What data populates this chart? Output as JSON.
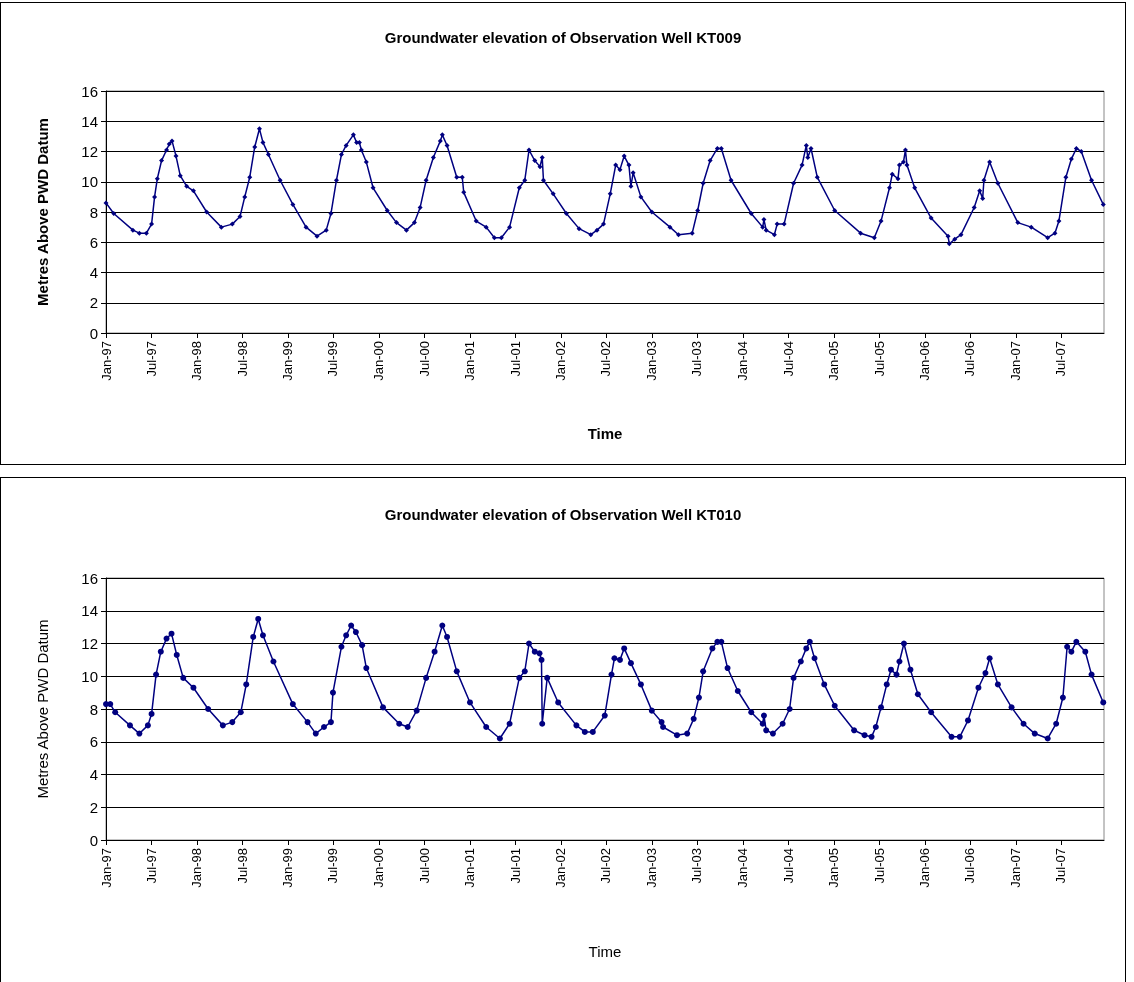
{
  "chart_data": [
    {
      "type": "line",
      "title": "Groundwater elevation of Observation Well KT009",
      "xlabel": "Time",
      "ylabel": "Metres Above PWD Datum",
      "xlim": [
        "1997-01",
        "2007-12-21"
      ],
      "ylim": [
        0,
        16
      ],
      "yticks": [
        0,
        2,
        4,
        6,
        8,
        10,
        12,
        14,
        16
      ],
      "xticks": [
        {
          "value": "1997-01",
          "label": "Jan-97"
        },
        {
          "value": "1997-07",
          "label": "Jul-97"
        },
        {
          "value": "1998-01",
          "label": "Jan-98"
        },
        {
          "value": "1998-07",
          "label": "Jul-98"
        },
        {
          "value": "1999-01",
          "label": "Jan-99"
        },
        {
          "value": "1999-07",
          "label": "Jul-99"
        },
        {
          "value": "2000-01",
          "label": "Jan-00"
        },
        {
          "value": "2000-07",
          "label": "Jul-00"
        },
        {
          "value": "2001-01",
          "label": "Jan-01"
        },
        {
          "value": "2001-07",
          "label": "Jul-01"
        },
        {
          "value": "2002-01",
          "label": "Jan-02"
        },
        {
          "value": "2002-07",
          "label": "Jul-02"
        },
        {
          "value": "2003-01",
          "label": "Jan-03"
        },
        {
          "value": "2003-07",
          "label": "Jul-03"
        },
        {
          "value": "2004-01",
          "label": "Jan-04"
        },
        {
          "value": "2004-07",
          "label": "Jul-04"
        },
        {
          "value": "2005-01",
          "label": "Jan-05"
        },
        {
          "value": "2005-07",
          "label": "Jul-05"
        },
        {
          "value": "2006-01",
          "label": "Jan-06"
        },
        {
          "value": "2006-07",
          "label": "Jul-06"
        },
        {
          "value": "2007-01",
          "label": "Jan-07"
        },
        {
          "value": "2007-07",
          "label": "Jul-07"
        }
      ],
      "grid": "y",
      "marker": "diamond",
      "line_style": "solid",
      "series": [
        {
          "color": "#000080",
          "x": [
            "1997-01-01",
            "1997-02-01",
            "1997-04-19",
            "1997-05-15",
            "1997-06-12",
            "1997-07-03",
            "1997-07-15",
            "1997-07-26",
            "1997-08-12",
            "1997-09-01",
            "1997-09-12",
            "1997-09-23",
            "1997-10-09",
            "1997-10-26",
            "1997-11-21",
            "1997-12-18",
            "1998-02-09",
            "1998-04-09",
            "1998-05-23",
            "1998-06-23",
            "1998-07-12",
            "1998-08-01",
            "1998-08-21",
            "1998-09-09",
            "1998-09-23",
            "1998-10-15",
            "1998-12-01",
            "1999-01-21",
            "1999-03-15",
            "1999-04-28",
            "1999-06-04",
            "1999-06-23",
            "1999-07-15",
            "1999-08-04",
            "1999-08-23",
            "1999-09-21",
            "1999-10-04",
            "1999-10-15",
            "1999-10-23",
            "1999-11-12",
            "1999-12-09",
            "2000-02-04",
            "2000-03-12",
            "2000-04-21",
            "2000-05-23",
            "2000-06-15",
            "2000-07-09",
            "2000-08-07",
            "2000-09-04",
            "2000-09-12",
            "2000-10-01",
            "2000-11-09",
            "2000-12-01",
            "2000-12-07",
            "2001-01-26",
            "2001-03-07",
            "2001-04-09",
            "2001-05-07",
            "2001-06-09",
            "2001-07-18",
            "2001-08-09",
            "2001-08-26",
            "2001-09-18",
            "2001-10-09",
            "2001-10-18",
            "2001-10-23",
            "2001-12-01",
            "2002-01-23",
            "2002-03-15",
            "2002-05-01",
            "2002-05-26",
            "2002-06-21",
            "2002-07-18",
            "2002-08-09",
            "2002-08-26",
            "2002-09-12",
            "2002-10-01",
            "2002-10-09",
            "2002-10-18",
            "2002-11-18",
            "2003-01-01",
            "2003-03-15",
            "2003-04-18",
            "2003-06-12",
            "2003-07-04",
            "2003-07-26",
            "2003-08-23",
            "2003-09-21",
            "2003-10-07",
            "2003-11-15",
            "2004-02-04",
            "2004-03-21",
            "2004-03-26",
            "2004-04-04",
            "2004-05-07",
            "2004-05-18",
            "2004-06-15",
            "2004-07-23",
            "2004-08-26",
            "2004-09-12",
            "2004-09-18",
            "2004-10-01",
            "2004-10-26",
            "2005-01-04",
            "2005-04-18",
            "2005-06-12",
            "2005-07-09",
            "2005-08-12",
            "2005-08-23",
            "2005-09-15",
            "2005-09-21",
            "2005-10-07",
            "2005-10-15",
            "2005-10-21",
            "2005-11-21",
            "2006-01-26",
            "2006-04-04",
            "2006-04-09",
            "2006-05-01",
            "2006-05-26",
            "2006-07-18",
            "2006-08-09",
            "2006-08-21",
            "2006-08-26",
            "2006-09-18",
            "2006-10-21",
            "2007-01-09",
            "2007-03-04",
            "2007-05-09",
            "2007-06-07",
            "2007-06-23",
            "2007-07-21",
            "2007-08-12",
            "2007-09-01",
            "2007-09-21",
            "2007-11-01",
            "2007-12-18"
          ],
          "values": [
            8.6,
            7.9,
            6.8,
            6.6,
            6.6,
            7.2,
            9.0,
            10.2,
            11.4,
            12.1,
            12.5,
            12.7,
            11.7,
            10.4,
            9.7,
            9.4,
            8.0,
            7.0,
            7.2,
            7.7,
            9.0,
            10.3,
            12.3,
            13.5,
            12.6,
            11.8,
            10.1,
            8.5,
            7.0,
            6.4,
            6.8,
            7.9,
            10.1,
            11.8,
            12.4,
            13.1,
            12.6,
            12.6,
            12.1,
            11.3,
            9.6,
            8.1,
            7.3,
            6.8,
            7.3,
            8.3,
            10.1,
            11.6,
            12.7,
            13.1,
            12.4,
            10.3,
            10.3,
            9.3,
            7.4,
            7.0,
            6.3,
            6.3,
            7.0,
            9.6,
            10.1,
            12.1,
            11.4,
            11.0,
            11.6,
            10.1,
            9.2,
            7.9,
            6.9,
            6.5,
            6.8,
            7.2,
            9.2,
            11.1,
            10.8,
            11.7,
            11.1,
            9.7,
            10.6,
            9.0,
            8.0,
            7.0,
            6.5,
            6.6,
            8.1,
            9.9,
            11.4,
            12.2,
            12.2,
            10.1,
            7.9,
            7.0,
            7.5,
            6.8,
            6.5,
            7.2,
            7.2,
            9.9,
            11.1,
            12.4,
            11.6,
            12.2,
            10.3,
            8.1,
            6.6,
            6.3,
            7.4,
            9.6,
            10.5,
            10.2,
            11.1,
            11.3,
            12.1,
            11.1,
            9.6,
            7.6,
            6.4,
            5.9,
            6.2,
            6.5,
            8.3,
            9.4,
            8.9,
            10.1,
            11.3,
            9.9,
            7.3,
            7.0,
            6.3,
            6.6,
            7.4,
            10.3,
            11.5,
            12.2,
            12.0,
            10.1,
            8.5
          ]
        }
      ]
    },
    {
      "type": "line",
      "title": "Groundwater elevation of Observation Well KT010",
      "xlabel": "Time",
      "ylabel": "Metres Above PWD Datum",
      "xlim": [
        "1997-01",
        "2007-12-21"
      ],
      "ylim": [
        0,
        16
      ],
      "yticks": [
        0,
        2,
        4,
        6,
        8,
        10,
        12,
        14,
        16
      ],
      "xticks": [
        {
          "value": "1997-01",
          "label": "Jan-97"
        },
        {
          "value": "1997-07",
          "label": "Jul-97"
        },
        {
          "value": "1998-01",
          "label": "Jan-98"
        },
        {
          "value": "1998-07",
          "label": "Jul-98"
        },
        {
          "value": "1999-01",
          "label": "Jan-99"
        },
        {
          "value": "1999-07",
          "label": "Jul-99"
        },
        {
          "value": "2000-01",
          "label": "Jan-00"
        },
        {
          "value": "2000-07",
          "label": "Jul-00"
        },
        {
          "value": "2001-01",
          "label": "Jan-01"
        },
        {
          "value": "2001-07",
          "label": "Jul-01"
        },
        {
          "value": "2002-01",
          "label": "Jan-02"
        },
        {
          "value": "2002-07",
          "label": "Jul-02"
        },
        {
          "value": "2003-01",
          "label": "Jan-03"
        },
        {
          "value": "2003-07",
          "label": "Jul-03"
        },
        {
          "value": "2004-01",
          "label": "Jan-04"
        },
        {
          "value": "2004-07",
          "label": "Jul-04"
        },
        {
          "value": "2005-01",
          "label": "Jan-05"
        },
        {
          "value": "2005-07",
          "label": "Jul-05"
        },
        {
          "value": "2006-01",
          "label": "Jan-06"
        },
        {
          "value": "2006-07",
          "label": "Jul-06"
        },
        {
          "value": "2007-01",
          "label": "Jan-07"
        },
        {
          "value": "2007-07",
          "label": "Jul-07"
        }
      ],
      "grid": "y",
      "marker": "circle",
      "line_style": "solid",
      "series": [
        {
          "color": "#000080",
          "x": [
            "1997-01-01",
            "1997-01-18",
            "1997-02-07",
            "1997-04-07",
            "1997-05-15",
            "1997-06-18",
            "1997-07-03",
            "1997-07-21",
            "1997-08-09",
            "1997-09-01",
            "1997-09-21",
            "1997-10-12",
            "1997-11-07",
            "1997-12-18",
            "1998-02-15",
            "1998-04-15",
            "1998-05-23",
            "1998-06-26",
            "1998-07-18",
            "1998-08-15",
            "1998-09-04",
            "1998-09-23",
            "1998-11-04",
            "1999-01-21",
            "1999-03-21",
            "1999-04-23",
            "1999-05-26",
            "1999-06-23",
            "1999-07-01",
            "1999-08-04",
            "1999-08-23",
            "1999-09-12",
            "1999-10-01",
            "1999-10-26",
            "1999-11-12",
            "2000-01-18",
            "2000-03-23",
            "2000-04-26",
            "2000-06-01",
            "2000-07-09",
            "2000-08-12",
            "2000-09-12",
            "2000-10-01",
            "2000-11-09",
            "2001-01-01",
            "2001-03-07",
            "2001-05-01",
            "2001-06-09",
            "2001-07-18",
            "2001-08-09",
            "2001-08-26",
            "2001-09-18",
            "2001-10-07",
            "2001-10-15",
            "2001-10-18",
            "2001-11-07",
            "2001-12-21",
            "2002-03-04",
            "2002-04-07",
            "2002-05-09",
            "2002-06-26",
            "2002-07-23",
            "2002-08-04",
            "2002-08-26",
            "2002-09-12",
            "2002-10-09",
            "2002-11-18",
            "2003-01-01",
            "2003-02-09",
            "2003-02-15",
            "2003-04-12",
            "2003-05-23",
            "2003-06-18",
            "2003-07-09",
            "2003-07-26",
            "2003-09-01",
            "2003-09-21",
            "2003-10-07",
            "2003-11-01",
            "2003-12-12",
            "2004-02-04",
            "2004-03-21",
            "2004-03-26",
            "2004-04-04",
            "2004-05-01",
            "2004-06-09",
            "2004-07-07",
            "2004-07-23",
            "2004-08-21",
            "2004-09-12",
            "2004-09-26",
            "2004-10-15",
            "2004-11-23",
            "2005-01-04",
            "2005-03-23",
            "2005-05-04",
            "2005-06-01",
            "2005-06-18",
            "2005-07-09",
            "2005-08-01",
            "2005-08-18",
            "2005-09-09",
            "2005-09-21",
            "2005-10-09",
            "2005-11-04",
            "2005-12-04",
            "2006-01-26",
            "2006-04-18",
            "2006-05-21",
            "2006-06-23",
            "2006-08-04",
            "2006-09-01",
            "2006-09-18",
            "2006-10-21",
            "2006-12-15",
            "2007-02-01",
            "2007-03-18",
            "2007-05-09",
            "2007-06-12",
            "2007-07-09",
            "2007-07-26",
            "2007-08-12",
            "2007-09-01",
            "2007-10-07",
            "2007-11-01",
            "2007-12-18"
          ],
          "values": [
            8.3,
            8.3,
            7.8,
            7.0,
            6.5,
            7.0,
            7.7,
            10.1,
            11.5,
            12.3,
            12.6,
            11.3,
            9.9,
            9.3,
            8.0,
            7.0,
            7.2,
            7.8,
            9.5,
            12.4,
            13.5,
            12.5,
            10.9,
            8.3,
            7.2,
            6.5,
            6.9,
            7.2,
            9.0,
            11.8,
            12.5,
            13.1,
            12.7,
            11.9,
            10.5,
            8.1,
            7.1,
            6.9,
            7.9,
            9.9,
            11.5,
            13.1,
            12.4,
            10.3,
            8.4,
            6.9,
            6.2,
            7.1,
            9.9,
            10.3,
            12.0,
            11.5,
            11.4,
            11.0,
            7.1,
            9.9,
            8.4,
            7.0,
            6.6,
            6.6,
            7.6,
            10.1,
            11.1,
            11.0,
            11.7,
            10.8,
            9.5,
            7.9,
            7.2,
            6.9,
            6.4,
            6.5,
            7.4,
            8.7,
            10.3,
            11.7,
            12.1,
            12.1,
            10.5,
            9.1,
            7.8,
            7.1,
            7.6,
            6.7,
            6.5,
            7.1,
            8.0,
            9.9,
            10.9,
            11.7,
            12.1,
            11.1,
            9.5,
            8.2,
            6.7,
            6.4,
            6.3,
            6.9,
            8.1,
            9.5,
            10.4,
            10.1,
            10.9,
            12.0,
            10.4,
            8.9,
            7.8,
            6.3,
            6.3,
            7.3,
            9.3,
            10.2,
            11.1,
            9.5,
            8.1,
            7.1,
            6.5,
            6.2,
            7.1,
            8.7,
            11.8,
            11.5,
            12.1,
            11.5,
            10.1,
            8.4
          ]
        }
      ]
    }
  ]
}
